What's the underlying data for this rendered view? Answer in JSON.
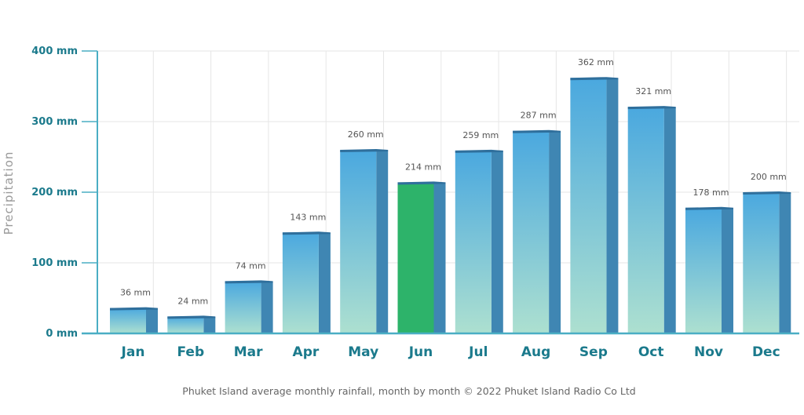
{
  "chart_data": {
    "type": "bar",
    "title": "",
    "xlabel": "",
    "ylabel": "Precipitation",
    "ylim": [
      0,
      400
    ],
    "yticks": [
      0,
      100,
      200,
      300,
      400
    ],
    "ytick_labels": [
      "0 mm",
      "100 mm",
      "200 mm",
      "300 mm",
      "400 mm"
    ],
    "categories": [
      "Jan",
      "Feb",
      "Mar",
      "Apr",
      "May",
      "Jun",
      "Jul",
      "Aug",
      "Sep",
      "Oct",
      "Nov",
      "Dec"
    ],
    "values": [
      36,
      24,
      74,
      143,
      260,
      214,
      259,
      287,
      362,
      321,
      178,
      200
    ],
    "data_labels": [
      "36 mm",
      "24 mm",
      "74 mm",
      "143 mm",
      "260 mm",
      "214 mm",
      "259 mm",
      "287 mm",
      "362 mm",
      "321 mm",
      "178 mm",
      "200 mm"
    ],
    "highlight_category": "Jun",
    "grid": true,
    "caption": "Phuket Island average monthly rainfall, month by month © 2022 Phuket Island Radio Co Ltd"
  },
  "colors": {
    "axis": "#4aaec4",
    "grid": "#e6e6e6",
    "tick_text": "#1b7a8c",
    "bar_top": "#4aa8df",
    "bar_bottom": "#ade0d0",
    "bar_side": "#3f86b3",
    "bar_cap": "#2f6f9c",
    "highlight_front": "#2db36a",
    "highlight_side": "#3f86b3"
  }
}
